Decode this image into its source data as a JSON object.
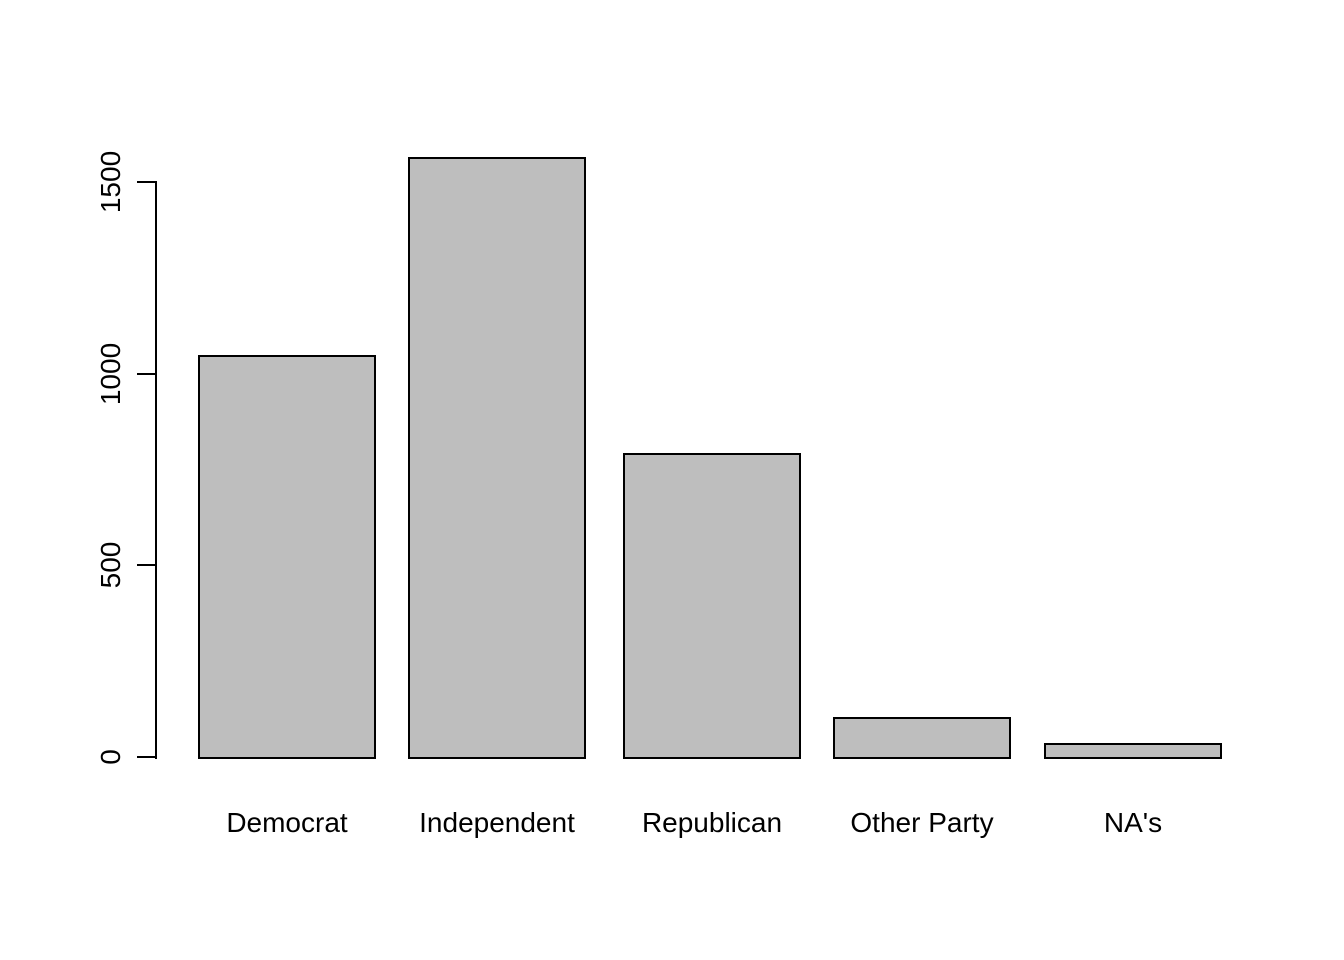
{
  "chart_data": {
    "type": "bar",
    "title": "",
    "xlabel": "",
    "ylabel": "",
    "categories": [
      "Democrat",
      "Independent",
      "Republican",
      "Other Party",
      "NA's"
    ],
    "values": [
      1048,
      1565,
      793,
      104,
      37
    ],
    "yticks": [
      0,
      500,
      1000,
      1500
    ],
    "ytick_labels": [
      "0",
      "500",
      "1000",
      "1500"
    ],
    "ylim": [
      0,
      1565
    ],
    "grid": false,
    "legend": false,
    "colors": {
      "bar_fill": "#BEBEBE",
      "bar_border": "#000000",
      "axis": "#000000",
      "text": "#000000",
      "background": "#FFFFFF"
    }
  }
}
